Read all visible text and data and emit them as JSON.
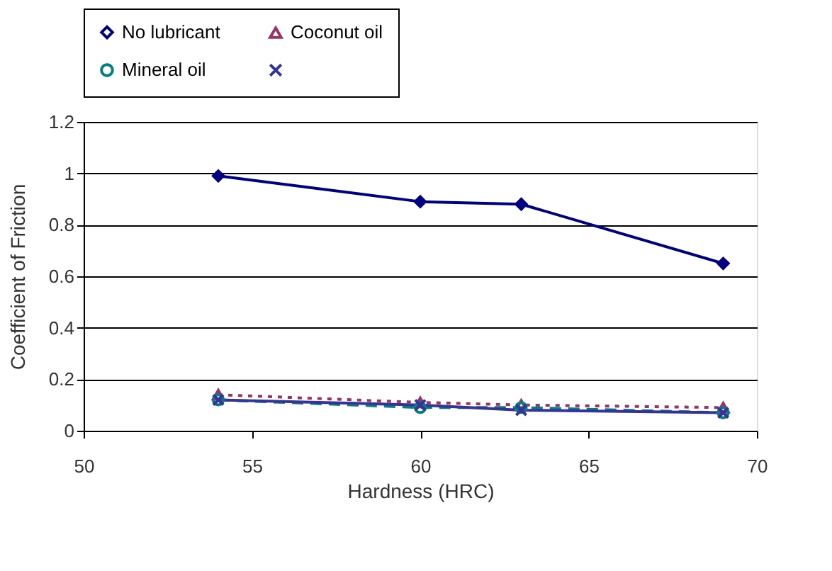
{
  "chart_data": {
    "type": "line",
    "xlabel": "Hardness (HRC)",
    "ylabel": "Coefficient of Friction",
    "x": [
      54,
      60,
      63,
      69
    ],
    "xlim": [
      50,
      70
    ],
    "xticks": [
      50,
      55,
      60,
      65,
      70
    ],
    "ylim": [
      0,
      1.2
    ],
    "yticks": [
      0,
      0.2,
      0.4,
      0.6,
      0.8,
      1,
      1.2
    ],
    "grid": "y",
    "legend": "top",
    "series": [
      {
        "name": "No lubricant",
        "color": "#000080",
        "marker": "diamond",
        "line_style": "solid",
        "values": [
          0.99,
          0.89,
          0.88,
          0.65
        ]
      },
      {
        "name": "Coconut oil",
        "color": "#993366",
        "marker": "triangle",
        "line_style": "dotted",
        "values": [
          0.14,
          0.11,
          0.1,
          0.09
        ]
      },
      {
        "name": "Mineral oil",
        "color": "#008080",
        "marker": "circle",
        "line_style": "dashed",
        "values": [
          0.12,
          0.09,
          0.09,
          0.07
        ]
      },
      {
        "color": "#333399",
        "marker": "cross",
        "line_style": "solid",
        "values": [
          0.12,
          0.1,
          0.08,
          0.07
        ]
      }
    ]
  }
}
